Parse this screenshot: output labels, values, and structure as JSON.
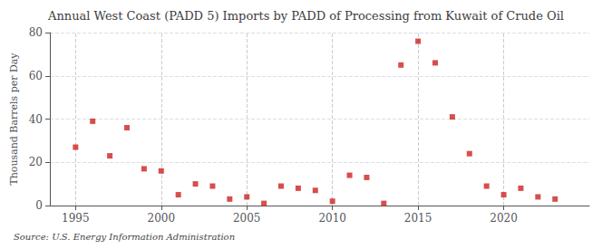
{
  "chart_data": {
    "type": "scatter",
    "title": "Annual West Coast (PADD 5) Imports by PADD of Processing from Kuwait of Crude Oil",
    "ylabel": "Thousand Barrels per Day",
    "source": "Source: U.S. Energy Information Administration",
    "x": [
      1995,
      1996,
      1997,
      1998,
      1999,
      2000,
      2001,
      2002,
      2003,
      2004,
      2005,
      2006,
      2007,
      2008,
      2009,
      2010,
      2011,
      2012,
      2013,
      2014,
      2015,
      2016,
      2017,
      2018,
      2019,
      2020,
      2021,
      2022,
      2023
    ],
    "values": [
      27,
      39,
      23,
      36,
      17,
      16,
      5,
      10,
      9,
      3,
      4,
      1,
      9,
      8,
      7,
      2,
      14,
      13,
      1,
      65,
      76,
      66,
      41,
      24,
      9,
      5,
      8,
      4,
      3
    ],
    "color": "#cc2222",
    "marker": "square",
    "xlim": [
      1993.5,
      2025
    ],
    "xticks": [
      1995,
      2000,
      2005,
      2010,
      2015,
      2020
    ],
    "ylim": [
      0,
      80
    ],
    "yticks": [
      0,
      20,
      40,
      60,
      80
    ],
    "grid": true
  }
}
